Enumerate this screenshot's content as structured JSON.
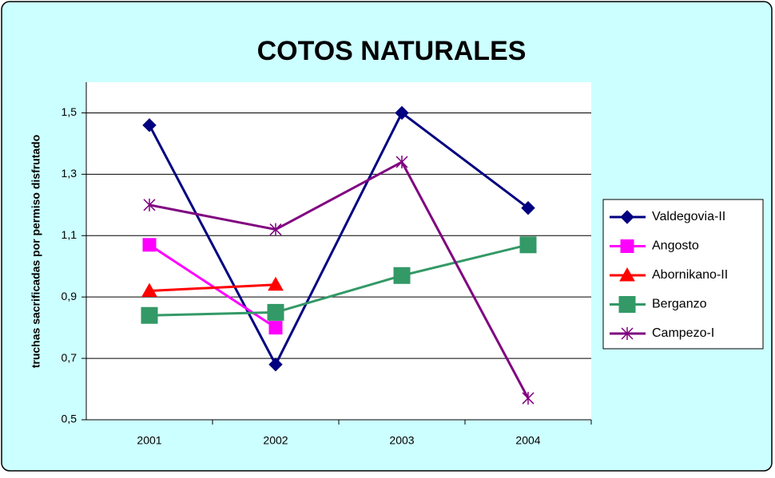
{
  "chart_data": {
    "type": "line",
    "title": "COTOS NATURALES",
    "y_label": "truchas sacrificadas por permiso disfrutado",
    "categories": [
      "2001",
      "2002",
      "2003",
      "2004"
    ],
    "series": [
      {
        "name": "Valdegovia-II",
        "color": "#000080",
        "marker": "diamond",
        "values": [
          1.46,
          0.68,
          1.5,
          1.19
        ]
      },
      {
        "name": "Angosto",
        "color": "#ff00ff",
        "marker": "square",
        "values": [
          1.07,
          0.8,
          null,
          null
        ]
      },
      {
        "name": "Abornikano-II",
        "color": "#ff0000",
        "marker": "triangle",
        "values": [
          0.92,
          0.94,
          null,
          null
        ]
      },
      {
        "name": "Berganzo",
        "color": "#339966",
        "marker": "bigsquare",
        "values": [
          0.84,
          0.85,
          0.97,
          1.07
        ]
      },
      {
        "name": "Campezo-I",
        "color": "#800080",
        "marker": "star",
        "values": [
          1.2,
          1.12,
          1.34,
          0.57
        ]
      }
    ],
    "ylim": [
      0.5,
      1.6
    ],
    "yticks": [
      {
        "value": 0.5,
        "label": "0,5"
      },
      {
        "value": 0.7,
        "label": "0,7"
      },
      {
        "value": 0.9,
        "label": "0,9"
      },
      {
        "value": 1.1,
        "label": "1,1"
      },
      {
        "value": 1.3,
        "label": "1,3"
      },
      {
        "value": 1.5,
        "label": "1,5"
      }
    ],
    "grid": true,
    "legend": "right"
  }
}
